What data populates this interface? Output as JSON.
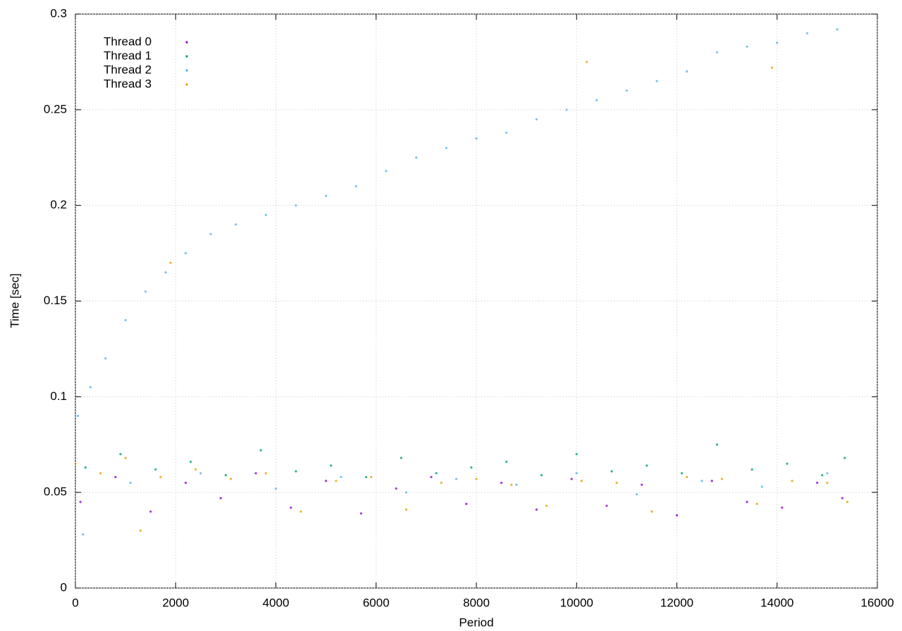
{
  "chart_data": {
    "type": "scatter",
    "x_label": "Period",
    "y_label": "Time [sec]",
    "xlim": [
      0,
      16000
    ],
    "xticks": [
      0,
      2000,
      4000,
      6000,
      8000,
      10000,
      12000,
      14000,
      16000
    ],
    "ylim": [
      0,
      0.3
    ],
    "yticks": [
      0,
      0.05,
      0.1,
      0.15,
      0.2,
      0.25,
      0.3
    ],
    "grid": true,
    "legend": "top-left",
    "series": [
      {
        "name": "Thread 0",
        "color": "#9400d3",
        "x": [
          100,
          800,
          1500,
          2200,
          2900,
          3600,
          4300,
          5000,
          5700,
          6400,
          7100,
          7800,
          8500,
          9200,
          9900,
          10600,
          11300,
          12000,
          12700,
          13400,
          14100,
          14800,
          15300
        ],
        "values": [
          0.045,
          0.058,
          0.04,
          0.055,
          0.047,
          0.06,
          0.042,
          0.056,
          0.039,
          0.052,
          0.058,
          0.044,
          0.055,
          0.041,
          0.057,
          0.043,
          0.054,
          0.038,
          0.056,
          0.045,
          0.042,
          0.055,
          0.047
        ]
      },
      {
        "name": "Thread 1",
        "color": "#009e73",
        "x": [
          200,
          900,
          1600,
          2300,
          3000,
          3700,
          4400,
          5100,
          5800,
          6500,
          7200,
          7900,
          8600,
          9300,
          10000,
          10700,
          11400,
          12100,
          12800,
          13500,
          14200,
          14900,
          15350
        ],
        "values": [
          0.063,
          0.07,
          0.062,
          0.066,
          0.059,
          0.072,
          0.061,
          0.064,
          0.058,
          0.068,
          0.06,
          0.063,
          0.066,
          0.059,
          0.07,
          0.061,
          0.064,
          0.06,
          0.075,
          0.062,
          0.065,
          0.059,
          0.068
        ]
      },
      {
        "name": "Thread 2",
        "color": "#56b4e9",
        "x": [
          50,
          300,
          600,
          1000,
          1400,
          1800,
          2200,
          2700,
          3200,
          3800,
          4400,
          5000,
          5600,
          6200,
          6800,
          7400,
          8000,
          8600,
          9200,
          9800,
          10400,
          11000,
          11600,
          12200,
          12800,
          13400,
          14000,
          14600,
          15200,
          150,
          1100,
          2500,
          4000,
          5300,
          6600,
          7600,
          8800,
          10000,
          11200,
          12500,
          13700,
          15000
        ],
        "values": [
          0.09,
          0.105,
          0.12,
          0.14,
          0.155,
          0.165,
          0.175,
          0.185,
          0.19,
          0.195,
          0.2,
          0.205,
          0.21,
          0.218,
          0.225,
          0.23,
          0.235,
          0.238,
          0.245,
          0.25,
          0.255,
          0.26,
          0.265,
          0.27,
          0.28,
          0.283,
          0.285,
          0.29,
          0.292,
          0.028,
          0.055,
          0.06,
          0.052,
          0.058,
          0.05,
          0.057,
          0.054,
          0.06,
          0.049,
          0.056,
          0.053,
          0.06
        ]
      },
      {
        "name": "Thread 3",
        "color": "#e69f00",
        "x": [
          0,
          500,
          1000,
          1300,
          1700,
          2400,
          3100,
          3800,
          4500,
          5200,
          5900,
          6600,
          7300,
          8000,
          8700,
          9400,
          10100,
          10800,
          11500,
          12200,
          12900,
          13600,
          14300,
          15000,
          15400,
          1900,
          10200,
          13900
        ],
        "values": [
          0.065,
          0.06,
          0.068,
          0.03,
          0.058,
          0.062,
          0.057,
          0.06,
          0.04,
          0.056,
          0.058,
          0.041,
          0.055,
          0.057,
          0.054,
          0.043,
          0.056,
          0.055,
          0.04,
          0.058,
          0.057,
          0.044,
          0.056,
          0.055,
          0.045,
          0.17,
          0.275,
          0.272
        ]
      }
    ]
  }
}
